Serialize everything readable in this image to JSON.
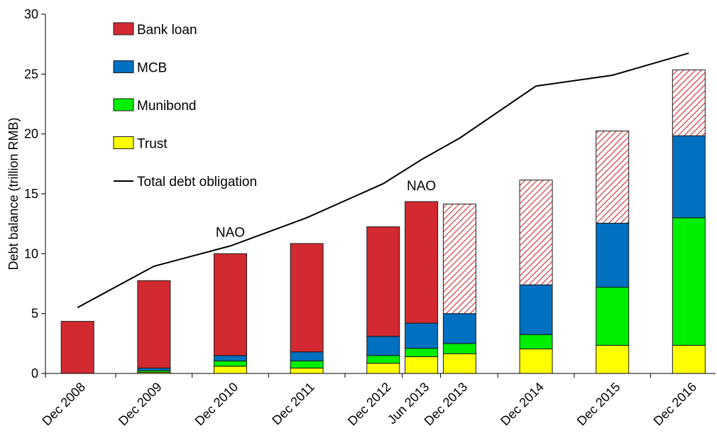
{
  "chart_data": {
    "type": "bar",
    "stacked": true,
    "ylabel": "Debt balance (trillion RMB)",
    "ylim": [
      0,
      30
    ],
    "yticks": [
      0,
      5,
      10,
      15,
      20,
      25,
      30
    ],
    "categories": [
      "Dec 2008",
      "Dec 2009",
      "Dec 2010",
      "Dec 2011",
      "Dec 2012",
      "Jun 2013",
      "Dec 2013",
      "Dec 2014",
      "Dec 2015",
      "Dec 2016"
    ],
    "x_positions": [
      2008.92,
      2009.92,
      2010.92,
      2011.92,
      2012.92,
      2013.42,
      2013.92,
      2014.92,
      2015.92,
      2016.92
    ],
    "series": [
      {
        "name": "Trust",
        "color": "#ffff00",
        "values": [
          0,
          0.1,
          0.6,
          0.45,
          0.85,
          1.4,
          1.65,
          2.05,
          2.35,
          2.35
        ]
      },
      {
        "name": "Munibond",
        "color": "#00ee00",
        "values": [
          0,
          0.15,
          0.45,
          0.6,
          0.65,
          0.7,
          0.85,
          1.2,
          4.85,
          10.65
        ]
      },
      {
        "name": "MCB",
        "color": "#0070c0",
        "values": [
          0,
          0.2,
          0.45,
          0.75,
          1.6,
          2.1,
          2.5,
          4.15,
          5.35,
          6.85
        ]
      },
      {
        "name": "Bank loan",
        "color": "#d22a30",
        "values": [
          4.35,
          7.3,
          8.5,
          9.05,
          9.15,
          10.15,
          9.15,
          8.75,
          7.7,
          5.5
        ],
        "hatched_from_index": 6
      }
    ],
    "line": {
      "name": "Total debt obligation",
      "values": [
        5.5,
        8.95,
        10.65,
        13.0,
        15.85,
        17.85,
        19.65,
        24.0,
        24.9,
        26.75
      ]
    },
    "legend": {
      "placement": "top-left",
      "items": [
        {
          "label": "Bank loan",
          "color": "#d22a30",
          "kind": "box"
        },
        {
          "label": "MCB",
          "color": "#0070c0",
          "kind": "box"
        },
        {
          "label": "Munibond",
          "color": "#00ee00",
          "kind": "box"
        },
        {
          "label": "Trust",
          "color": "#ffff00",
          "kind": "box"
        },
        {
          "label": "Total debt obligation",
          "color": "#000000",
          "kind": "line"
        }
      ]
    },
    "annotations": [
      {
        "text": "NAO",
        "x": 2010.92,
        "y": 11.4
      },
      {
        "text": "NAO",
        "x": 2013.42,
        "y": 15.3
      }
    ]
  }
}
